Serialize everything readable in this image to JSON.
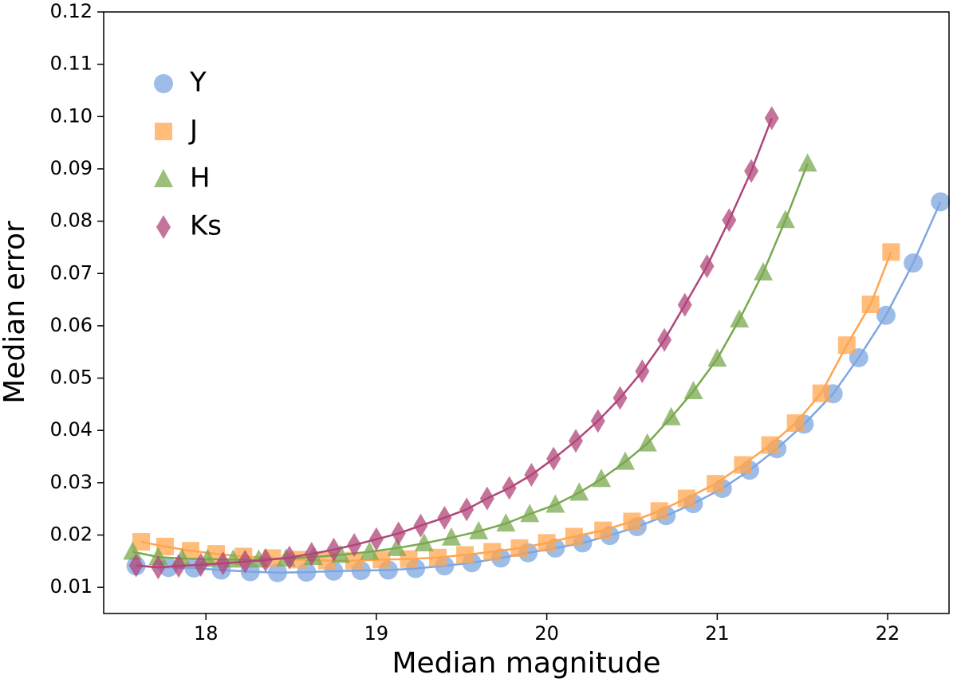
{
  "chart_data": {
    "type": "scatter",
    "x_label": "Median magnitude",
    "y_label": "Median error",
    "xlim": [
      17.4,
      22.36
    ],
    "ylim": [
      0.005,
      0.12
    ],
    "xticks": [
      18,
      19,
      20,
      21,
      22
    ],
    "yticks": [
      0.01,
      0.02,
      0.03,
      0.04,
      0.05,
      0.06,
      0.07,
      0.08,
      0.09,
      {
        "value": 0.1,
        "label": "0.10"
      },
      0.11,
      0.12
    ],
    "legend": "upper left",
    "series": [
      {
        "name": "Y",
        "color": "#7ea6e0",
        "marker": "circle",
        "x": [
          17.59,
          17.78,
          17.93,
          18.09,
          18.26,
          18.42,
          18.59,
          18.75,
          18.91,
          19.07,
          19.23,
          19.4,
          19.56,
          19.73,
          19.89,
          20.05,
          20.21,
          20.37,
          20.53,
          20.7,
          20.86,
          21.03,
          21.19,
          21.35,
          21.51,
          21.68,
          21.83,
          21.99,
          22.15,
          22.31
        ],
        "values": [
          0.0141,
          0.0138,
          0.0137,
          0.0133,
          0.013,
          0.0128,
          0.0129,
          0.0131,
          0.0132,
          0.0133,
          0.0136,
          0.0141,
          0.0147,
          0.0156,
          0.0166,
          0.0175,
          0.0185,
          0.0199,
          0.0216,
          0.0237,
          0.026,
          0.0289,
          0.0324,
          0.0365,
          0.0412,
          0.047,
          0.0539,
          0.062,
          0.072,
          0.0837
        ]
      },
      {
        "name": "J",
        "color": "#ffa54f",
        "marker": "square",
        "x": [
          17.62,
          17.76,
          17.91,
          18.06,
          18.22,
          18.39,
          18.54,
          18.71,
          18.87,
          19.03,
          19.19,
          19.36,
          19.52,
          19.68,
          19.84,
          20.0,
          20.16,
          20.33,
          20.5,
          20.66,
          20.82,
          20.99,
          21.15,
          21.31,
          21.46,
          21.61,
          21.76,
          21.9,
          22.02
        ],
        "values": [
          0.0187,
          0.0178,
          0.017,
          0.0164,
          0.0159,
          0.0156,
          0.0153,
          0.0151,
          0.0151,
          0.0153,
          0.0154,
          0.0157,
          0.0162,
          0.0168,
          0.0175,
          0.0185,
          0.0197,
          0.0209,
          0.0226,
          0.0246,
          0.027,
          0.0298,
          0.0334,
          0.0372,
          0.0414,
          0.0471,
          0.0563,
          0.0641,
          0.0741
        ]
      },
      {
        "name": "H",
        "color": "#7aa84e",
        "marker": "triangle",
        "x": [
          17.57,
          17.72,
          17.86,
          18.01,
          18.16,
          18.31,
          18.47,
          18.63,
          18.79,
          18.96,
          19.12,
          19.28,
          19.44,
          19.6,
          19.76,
          19.9,
          20.05,
          20.19,
          20.32,
          20.46,
          20.59,
          20.73,
          20.86,
          21.0,
          21.13,
          21.27,
          21.4,
          21.53
        ],
        "values": [
          0.0168,
          0.0158,
          0.0155,
          0.0154,
          0.0153,
          0.0153,
          0.0155,
          0.0158,
          0.0162,
          0.0168,
          0.0175,
          0.0184,
          0.0195,
          0.0207,
          0.0222,
          0.024,
          0.0258,
          0.0281,
          0.0307,
          0.034,
          0.0375,
          0.0425,
          0.0475,
          0.0537,
          0.0612,
          0.0702,
          0.0802,
          0.091
        ]
      },
      {
        "name": "Ks",
        "color": "#b0457a",
        "marker": "diamond",
        "x": [
          17.59,
          17.72,
          17.84,
          17.97,
          18.1,
          18.23,
          18.35,
          18.49,
          18.62,
          18.75,
          18.87,
          19.0,
          19.13,
          19.26,
          19.4,
          19.53,
          19.65,
          19.78,
          19.91,
          20.04,
          20.17,
          20.3,
          20.43,
          20.56,
          20.69,
          20.81,
          20.94,
          21.07,
          21.2,
          21.32
        ],
        "values": [
          0.0142,
          0.0138,
          0.0141,
          0.0143,
          0.0146,
          0.0149,
          0.0152,
          0.0157,
          0.0164,
          0.0172,
          0.0181,
          0.0192,
          0.0203,
          0.0218,
          0.0233,
          0.0249,
          0.027,
          0.029,
          0.0315,
          0.0346,
          0.038,
          0.0418,
          0.0462,
          0.0513,
          0.0573,
          0.064,
          0.0714,
          0.0802,
          0.0896,
          0.0997
        ]
      }
    ]
  }
}
